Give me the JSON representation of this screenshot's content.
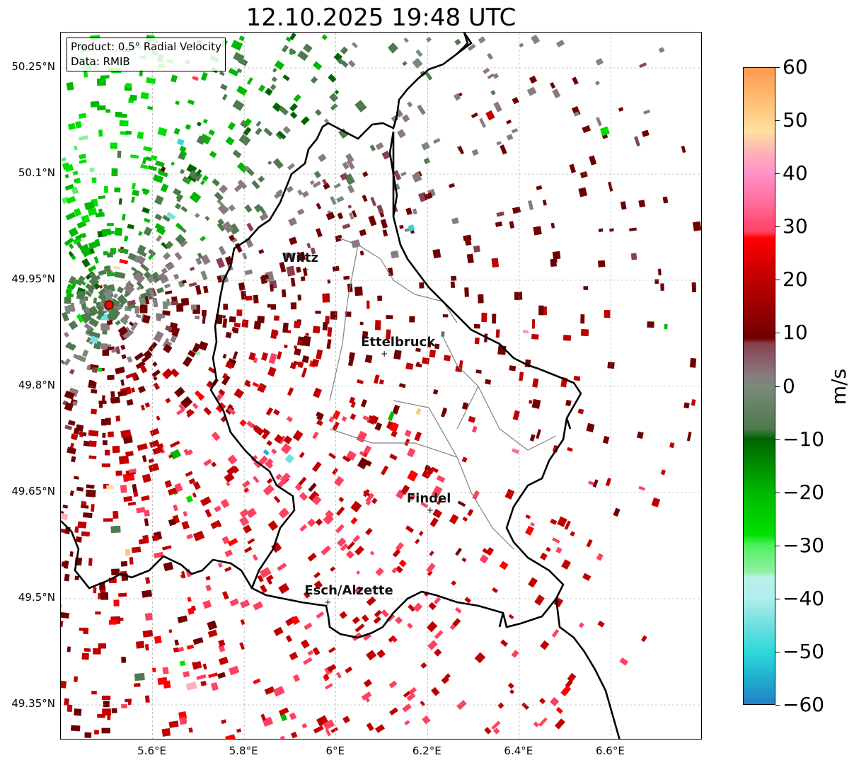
{
  "title": "12.10.2025 19:48 UTC",
  "info": {
    "product": "Product: 0.5° Radial Velocity",
    "source": "Data: RMIB"
  },
  "map": {
    "lat_range": [
      49.3,
      50.3
    ],
    "lon_range": [
      5.4,
      6.8
    ],
    "lat_ticks": [
      {
        "value": 50.25,
        "label": "50.25°N"
      },
      {
        "value": 50.1,
        "label": "50.1°N"
      },
      {
        "value": 49.95,
        "label": "49.95°N"
      },
      {
        "value": 49.8,
        "label": "49.8°N"
      },
      {
        "value": 49.65,
        "label": "49.65°N"
      },
      {
        "value": 49.5,
        "label": "49.5°N"
      },
      {
        "value": 49.35,
        "label": "49.35°N"
      }
    ],
    "lon_ticks": [
      {
        "value": 5.6,
        "label": "5.6°E"
      },
      {
        "value": 5.8,
        "label": "5.8°E"
      },
      {
        "value": 6.0,
        "label": "6°E"
      },
      {
        "value": 6.2,
        "label": "6.2°E"
      },
      {
        "value": 6.4,
        "label": "6.4°E"
      },
      {
        "value": 6.6,
        "label": "6.6°E"
      }
    ],
    "radar_site": {
      "lat": 49.915,
      "lon": 5.505,
      "color": "#ff0000"
    },
    "cities": [
      {
        "name": "Wiltz",
        "lat": 49.966,
        "lon": 5.932
      },
      {
        "name": "Ettelbruck",
        "lat": 49.847,
        "lon": 6.104
      },
      {
        "name": "Findel",
        "lat": 49.626,
        "lon": 6.204
      },
      {
        "name": "Esch/Alzette",
        "lat": 49.496,
        "lon": 5.981
      }
    ]
  },
  "colorbar": {
    "min": -60,
    "max": 60,
    "unit": "m/s",
    "ticks": [
      {
        "value": 60,
        "label": "60"
      },
      {
        "value": 50,
        "label": "50"
      },
      {
        "value": 40,
        "label": "40"
      },
      {
        "value": 30,
        "label": "30"
      },
      {
        "value": 20,
        "label": "20"
      },
      {
        "value": 10,
        "label": "10"
      },
      {
        "value": 0,
        "label": "0"
      },
      {
        "value": -10,
        "label": "−10"
      },
      {
        "value": -20,
        "label": "−20"
      },
      {
        "value": -30,
        "label": "−30"
      },
      {
        "value": -40,
        "label": "−40"
      },
      {
        "value": -50,
        "label": "−50"
      },
      {
        "value": -60,
        "label": "−60"
      }
    ],
    "stops": [
      {
        "v": -60,
        "c": "#2080c8"
      },
      {
        "v": -55,
        "c": "#20b0d0"
      },
      {
        "v": -50,
        "c": "#30d8d8"
      },
      {
        "v": -45,
        "c": "#70e0e0"
      },
      {
        "v": -40,
        "c": "#b0eeee"
      },
      {
        "v": -36,
        "c": "#b8f0e8"
      },
      {
        "v": -35,
        "c": "#90f0a0"
      },
      {
        "v": -30,
        "c": "#50f060"
      },
      {
        "v": -28,
        "c": "#00e000"
      },
      {
        "v": -20,
        "c": "#00b800"
      },
      {
        "v": -10,
        "c": "#006400"
      },
      {
        "v": -8,
        "c": "#4e7a4e"
      },
      {
        "v": 0,
        "c": "#7a8a7a"
      },
      {
        "v": 2,
        "c": "#8a7a80"
      },
      {
        "v": 8,
        "c": "#884050"
      },
      {
        "v": 9,
        "c": "#700000"
      },
      {
        "v": 20,
        "c": "#c00000"
      },
      {
        "v": 28,
        "c": "#ff0000"
      },
      {
        "v": 29,
        "c": "#ff4060"
      },
      {
        "v": 35,
        "c": "#ff70a0"
      },
      {
        "v": 40,
        "c": "#ff90c8"
      },
      {
        "v": 44,
        "c": "#ffb0b8"
      },
      {
        "v": 48,
        "c": "#ffe0a0"
      },
      {
        "v": 52,
        "c": "#ffc880"
      },
      {
        "v": 60,
        "c": "#ff9850"
      }
    ]
  },
  "layers": {
    "border_color": "#000000",
    "canton_color": "#808080",
    "grid": true
  }
}
